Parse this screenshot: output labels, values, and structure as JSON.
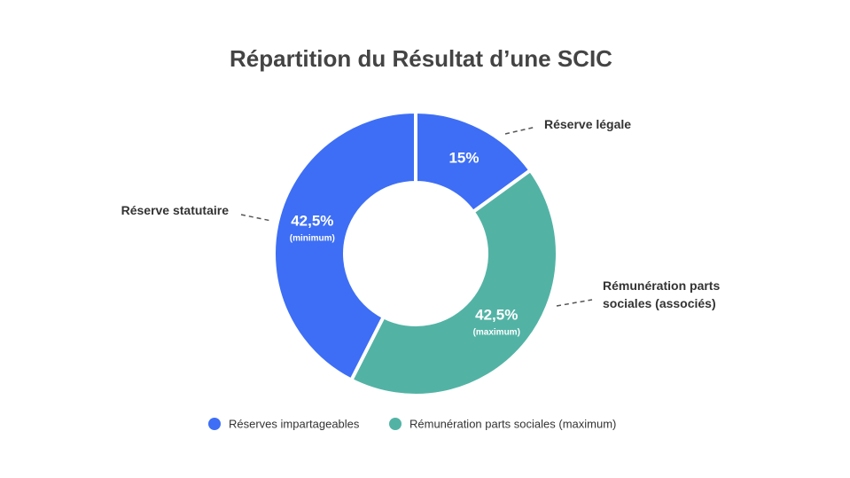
{
  "chart_data": {
    "type": "pie",
    "donut": true,
    "title": "Répartition du Résultat d’une SCIC",
    "categories": [
      "Réserve légale",
      "Rémunération parts sociales (associés)",
      "Réserve statutaire"
    ],
    "values": [
      15,
      42.5,
      42.5
    ],
    "value_labels": [
      "15%",
      "42,5%",
      "42,5%"
    ],
    "value_sublabels": [
      null,
      "(maximum)",
      "(minimum)"
    ],
    "colors": [
      "#3d6ef5",
      "#52b3a5",
      "#3d6ef5"
    ],
    "legend": [
      {
        "name": "Réserves impartageables",
        "color": "#3d6ef5"
      },
      {
        "name": "Rémunération parts sociales (maximum)",
        "color": "#52b3a5"
      }
    ]
  }
}
